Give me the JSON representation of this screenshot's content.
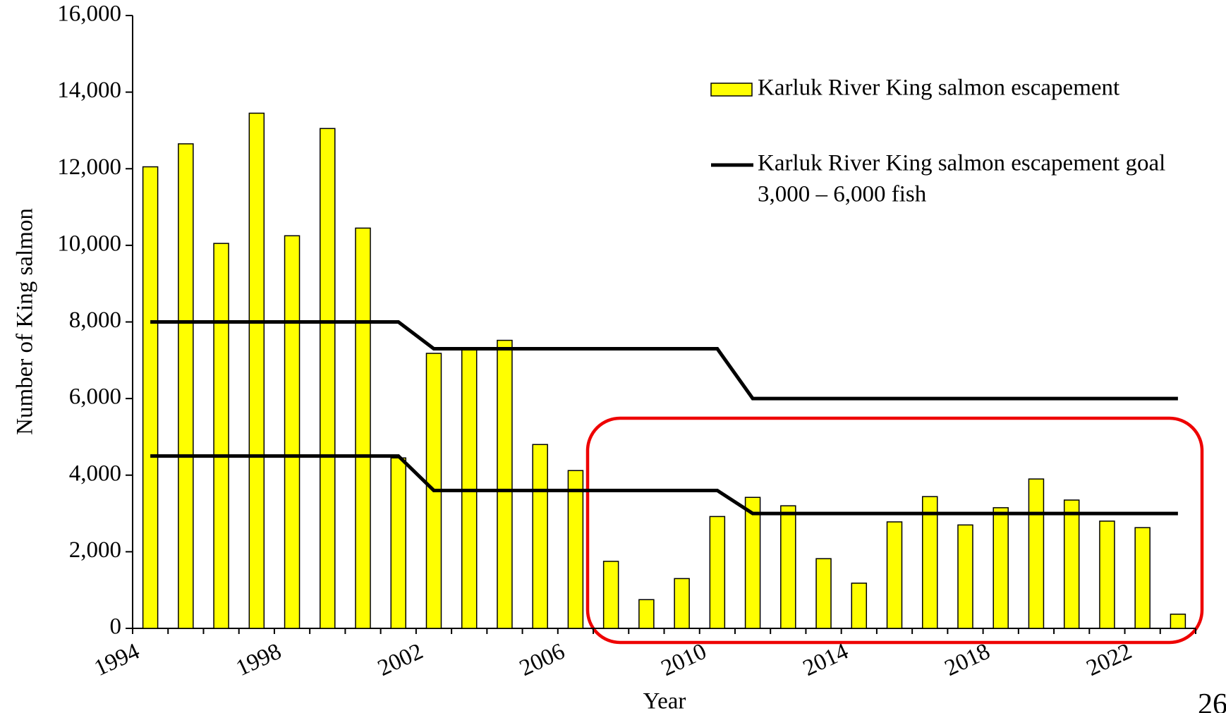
{
  "chart_data": {
    "type": "bar",
    "y_label": "Number of King salmon",
    "x_label": "Year",
    "categories": [
      1994,
      1995,
      1996,
      1997,
      1998,
      1999,
      2000,
      2001,
      2002,
      2003,
      2004,
      2005,
      2006,
      2007,
      2008,
      2009,
      2010,
      2011,
      2012,
      2013,
      2014,
      2015,
      2016,
      2017,
      2018,
      2019,
      2020,
      2021,
      2022,
      2023
    ],
    "x_tick_every": 4,
    "series": [
      {
        "name": "Karluk River King salmon escapement",
        "type": "bar",
        "color": "#ffff00",
        "values": [
          12050,
          12650,
          10050,
          13450,
          10250,
          13050,
          10450,
          4450,
          7180,
          7300,
          7520,
          4800,
          4120,
          1750,
          750,
          1300,
          2920,
          3420,
          3200,
          1820,
          1180,
          2780,
          3440,
          2700,
          3150,
          3900,
          3350,
          2800,
          2630,
          370
        ]
      },
      {
        "name": "Karluk River King salmon escapement goal",
        "note": "3,000 – 6,000 fish",
        "type": "line",
        "color": "#000000",
        "values": [
          8000,
          8000,
          8000,
          8000,
          8000,
          8000,
          8000,
          8000,
          7300,
          7300,
          7300,
          7300,
          7300,
          7300,
          7300,
          7300,
          7300,
          6000,
          6000,
          6000,
          6000,
          6000,
          6000,
          6000,
          6000,
          6000,
          6000,
          6000,
          6000,
          6000
        ],
        "values_low": [
          4500,
          4500,
          4500,
          4500,
          4500,
          4500,
          4500,
          4500,
          3600,
          3600,
          3600,
          3600,
          3600,
          3600,
          3600,
          3600,
          3600,
          3000,
          3000,
          3000,
          3000,
          3000,
          3000,
          3000,
          3000,
          3000,
          3000,
          3000,
          3000,
          3000
        ]
      }
    ],
    "ylim": [
      0,
      16000
    ],
    "yticks": [
      0,
      {
        "value": 2000,
        "label": "2,000"
      },
      {
        "value": 4000,
        "label": "4,000"
      },
      {
        "value": 6000,
        "label": "6,000"
      },
      {
        "value": 8000,
        "label": "8,000"
      },
      {
        "value": 10000,
        "label": "10,000"
      },
      {
        "value": 12000,
        "label": "12,000"
      },
      {
        "value": 14000,
        "label": "14,000"
      },
      {
        "value": 16000,
        "label": "16,000"
      }
    ],
    "page_number": "26"
  }
}
